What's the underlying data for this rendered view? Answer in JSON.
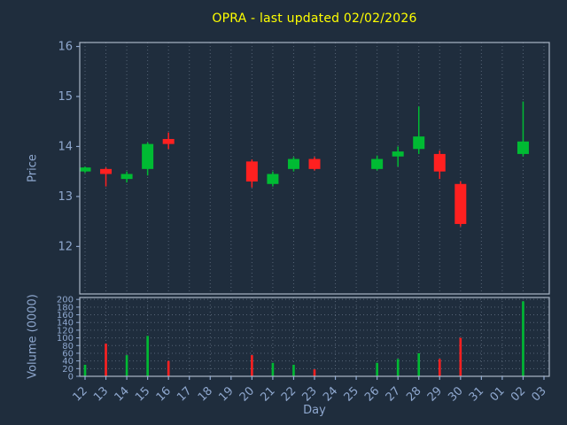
{
  "title": "OPRA - last updated 02/02/2026",
  "xlabel": "Day",
  "palette": {
    "background": "#1f2d3d",
    "up": "#00bb33",
    "down": "#ff2020",
    "grid": "#566476",
    "spine": "#aab6c6",
    "tick_label": "#8fa8cf",
    "axis_label": "#8fa8cf",
    "title": "#ffff00"
  },
  "chart_data": [
    {
      "type": "candlestick",
      "panel": "price",
      "ylabel": "Price",
      "yticks": [
        12,
        13,
        14,
        15,
        16
      ],
      "ylim": [
        11.05,
        16.08
      ],
      "grid": "vertical-dotted",
      "categories": [
        "12",
        "13",
        "14",
        "15",
        "16",
        "17",
        "18",
        "19",
        "20",
        "21",
        "22",
        "23",
        "24",
        "25",
        "26",
        "27",
        "28",
        "29",
        "30",
        "31",
        "01",
        "02",
        "03"
      ],
      "candles": [
        {
          "day": "12",
          "open": 13.5,
          "high": 13.6,
          "low": 13.47,
          "close": 13.58
        },
        {
          "day": "13",
          "open": 13.55,
          "high": 13.58,
          "low": 13.2,
          "close": 13.45
        },
        {
          "day": "14",
          "open": 13.35,
          "high": 13.5,
          "low": 13.28,
          "close": 13.45
        },
        {
          "day": "15",
          "open": 13.55,
          "high": 14.08,
          "low": 13.42,
          "close": 14.05
        },
        {
          "day": "16",
          "open": 14.15,
          "high": 14.28,
          "low": 13.95,
          "close": 14.05
        },
        {
          "day": "20",
          "open": 13.7,
          "high": 13.74,
          "low": 13.18,
          "close": 13.3
        },
        {
          "day": "21",
          "open": 13.25,
          "high": 13.5,
          "low": 13.2,
          "close": 13.45
        },
        {
          "day": "22",
          "open": 13.55,
          "high": 13.79,
          "low": 13.5,
          "close": 13.75
        },
        {
          "day": "23",
          "open": 13.75,
          "high": 13.79,
          "low": 13.52,
          "close": 13.55
        },
        {
          "day": "26",
          "open": 13.55,
          "high": 13.82,
          "low": 13.52,
          "close": 13.75
        },
        {
          "day": "27",
          "open": 13.8,
          "high": 14.0,
          "low": 13.6,
          "close": 13.9
        },
        {
          "day": "28",
          "open": 13.95,
          "high": 14.8,
          "low": 13.85,
          "close": 14.2
        },
        {
          "day": "29",
          "open": 13.85,
          "high": 13.92,
          "low": 13.35,
          "close": 13.5
        },
        {
          "day": "30",
          "open": 13.25,
          "high": 13.3,
          "low": 12.4,
          "close": 12.45
        },
        {
          "day": "02",
          "open": 13.85,
          "high": 14.9,
          "low": 13.8,
          "close": 14.1
        }
      ]
    },
    {
      "type": "bar",
      "panel": "volume",
      "ylabel": "Volume (0000)",
      "yticks": [
        0,
        20,
        40,
        60,
        80,
        100,
        120,
        140,
        160,
        180,
        200
      ],
      "ylim": [
        0,
        205
      ],
      "grid": "both-dotted",
      "bars": [
        {
          "day": "12",
          "value": 30,
          "direction": "up"
        },
        {
          "day": "13",
          "value": 85,
          "direction": "down"
        },
        {
          "day": "14",
          "value": 55,
          "direction": "up"
        },
        {
          "day": "15",
          "value": 105,
          "direction": "up"
        },
        {
          "day": "16",
          "value": 40,
          "direction": "down"
        },
        {
          "day": "20",
          "value": 55,
          "direction": "down"
        },
        {
          "day": "21",
          "value": 35,
          "direction": "up"
        },
        {
          "day": "22",
          "value": 30,
          "direction": "up"
        },
        {
          "day": "23",
          "value": 18,
          "direction": "down"
        },
        {
          "day": "26",
          "value": 35,
          "direction": "up"
        },
        {
          "day": "27",
          "value": 45,
          "direction": "up"
        },
        {
          "day": "28",
          "value": 60,
          "direction": "up"
        },
        {
          "day": "29",
          "value": 45,
          "direction": "down"
        },
        {
          "day": "30",
          "value": 100,
          "direction": "down"
        },
        {
          "day": "02",
          "value": 195,
          "direction": "up"
        }
      ]
    }
  ]
}
